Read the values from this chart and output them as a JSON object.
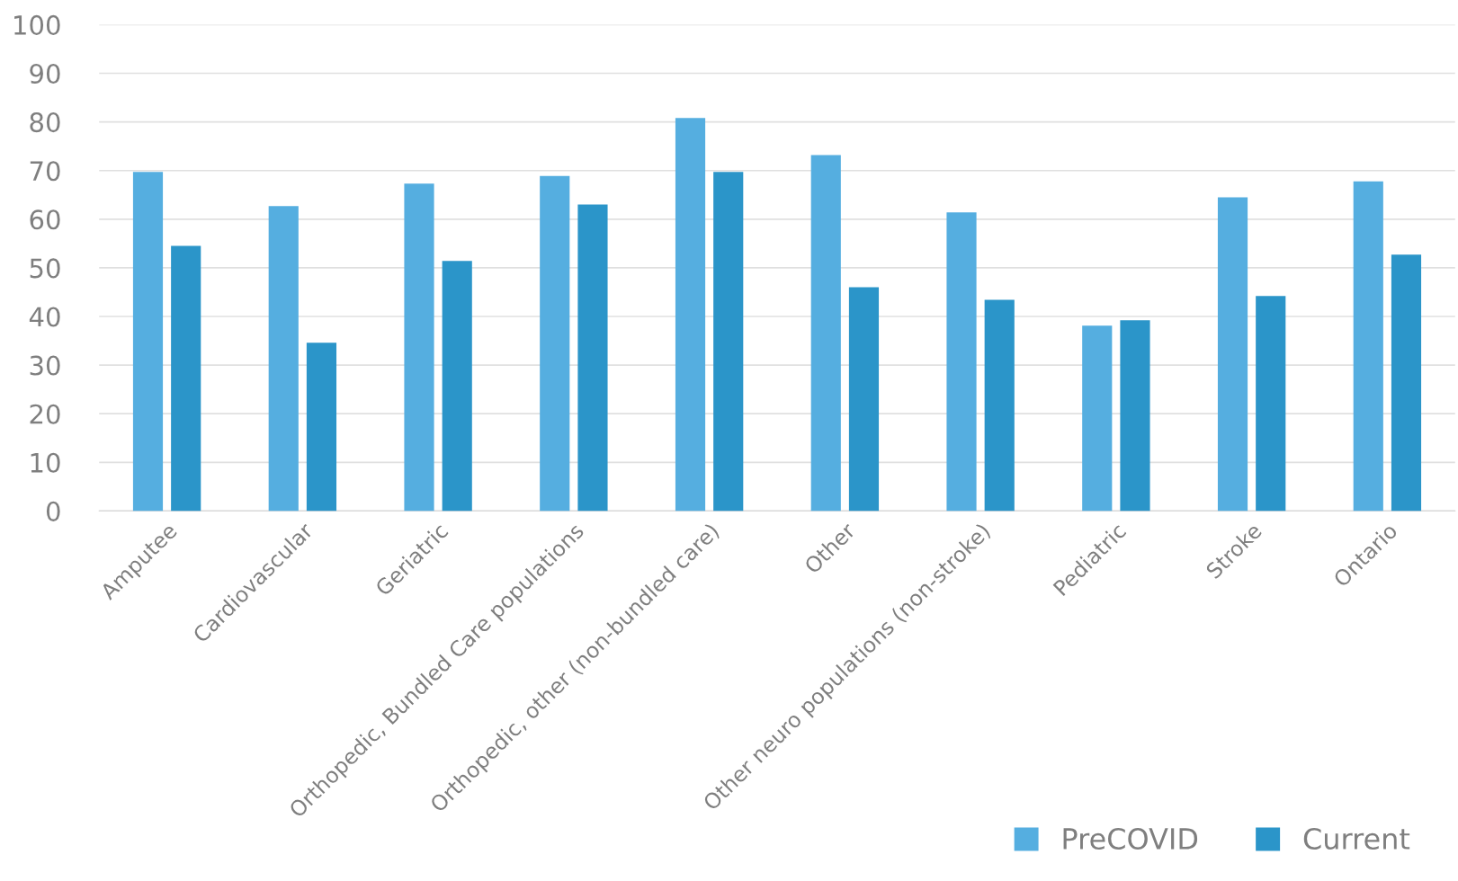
{
  "chart_data": {
    "type": "bar",
    "categories": [
      "Amputee",
      "Cardiovascular",
      "Geriatric",
      "Orthopedic, Bundled Care populations",
      "Orthopedic, other (non-bundled care)",
      "Other",
      "Other neuro populations (non-stroke)",
      "Pediatric",
      "Stroke",
      "Ontario"
    ],
    "series": [
      {
        "name": "PreCOVID",
        "color": "#55aee0",
        "values": [
          69.7,
          62.7,
          67.3,
          68.9,
          80.8,
          73.2,
          61.4,
          38.1,
          64.5,
          67.8
        ]
      },
      {
        "name": "Current",
        "color": "#2b95c9",
        "values": [
          54.5,
          34.6,
          51.4,
          63.0,
          69.7,
          46.0,
          43.4,
          39.2,
          44.2,
          52.7
        ]
      }
    ],
    "ylim": [
      0,
      100
    ],
    "yticks": [
      0,
      10,
      20,
      30,
      40,
      50,
      60,
      70,
      80,
      90,
      100
    ],
    "grid": "y",
    "legend": "bottom right"
  }
}
